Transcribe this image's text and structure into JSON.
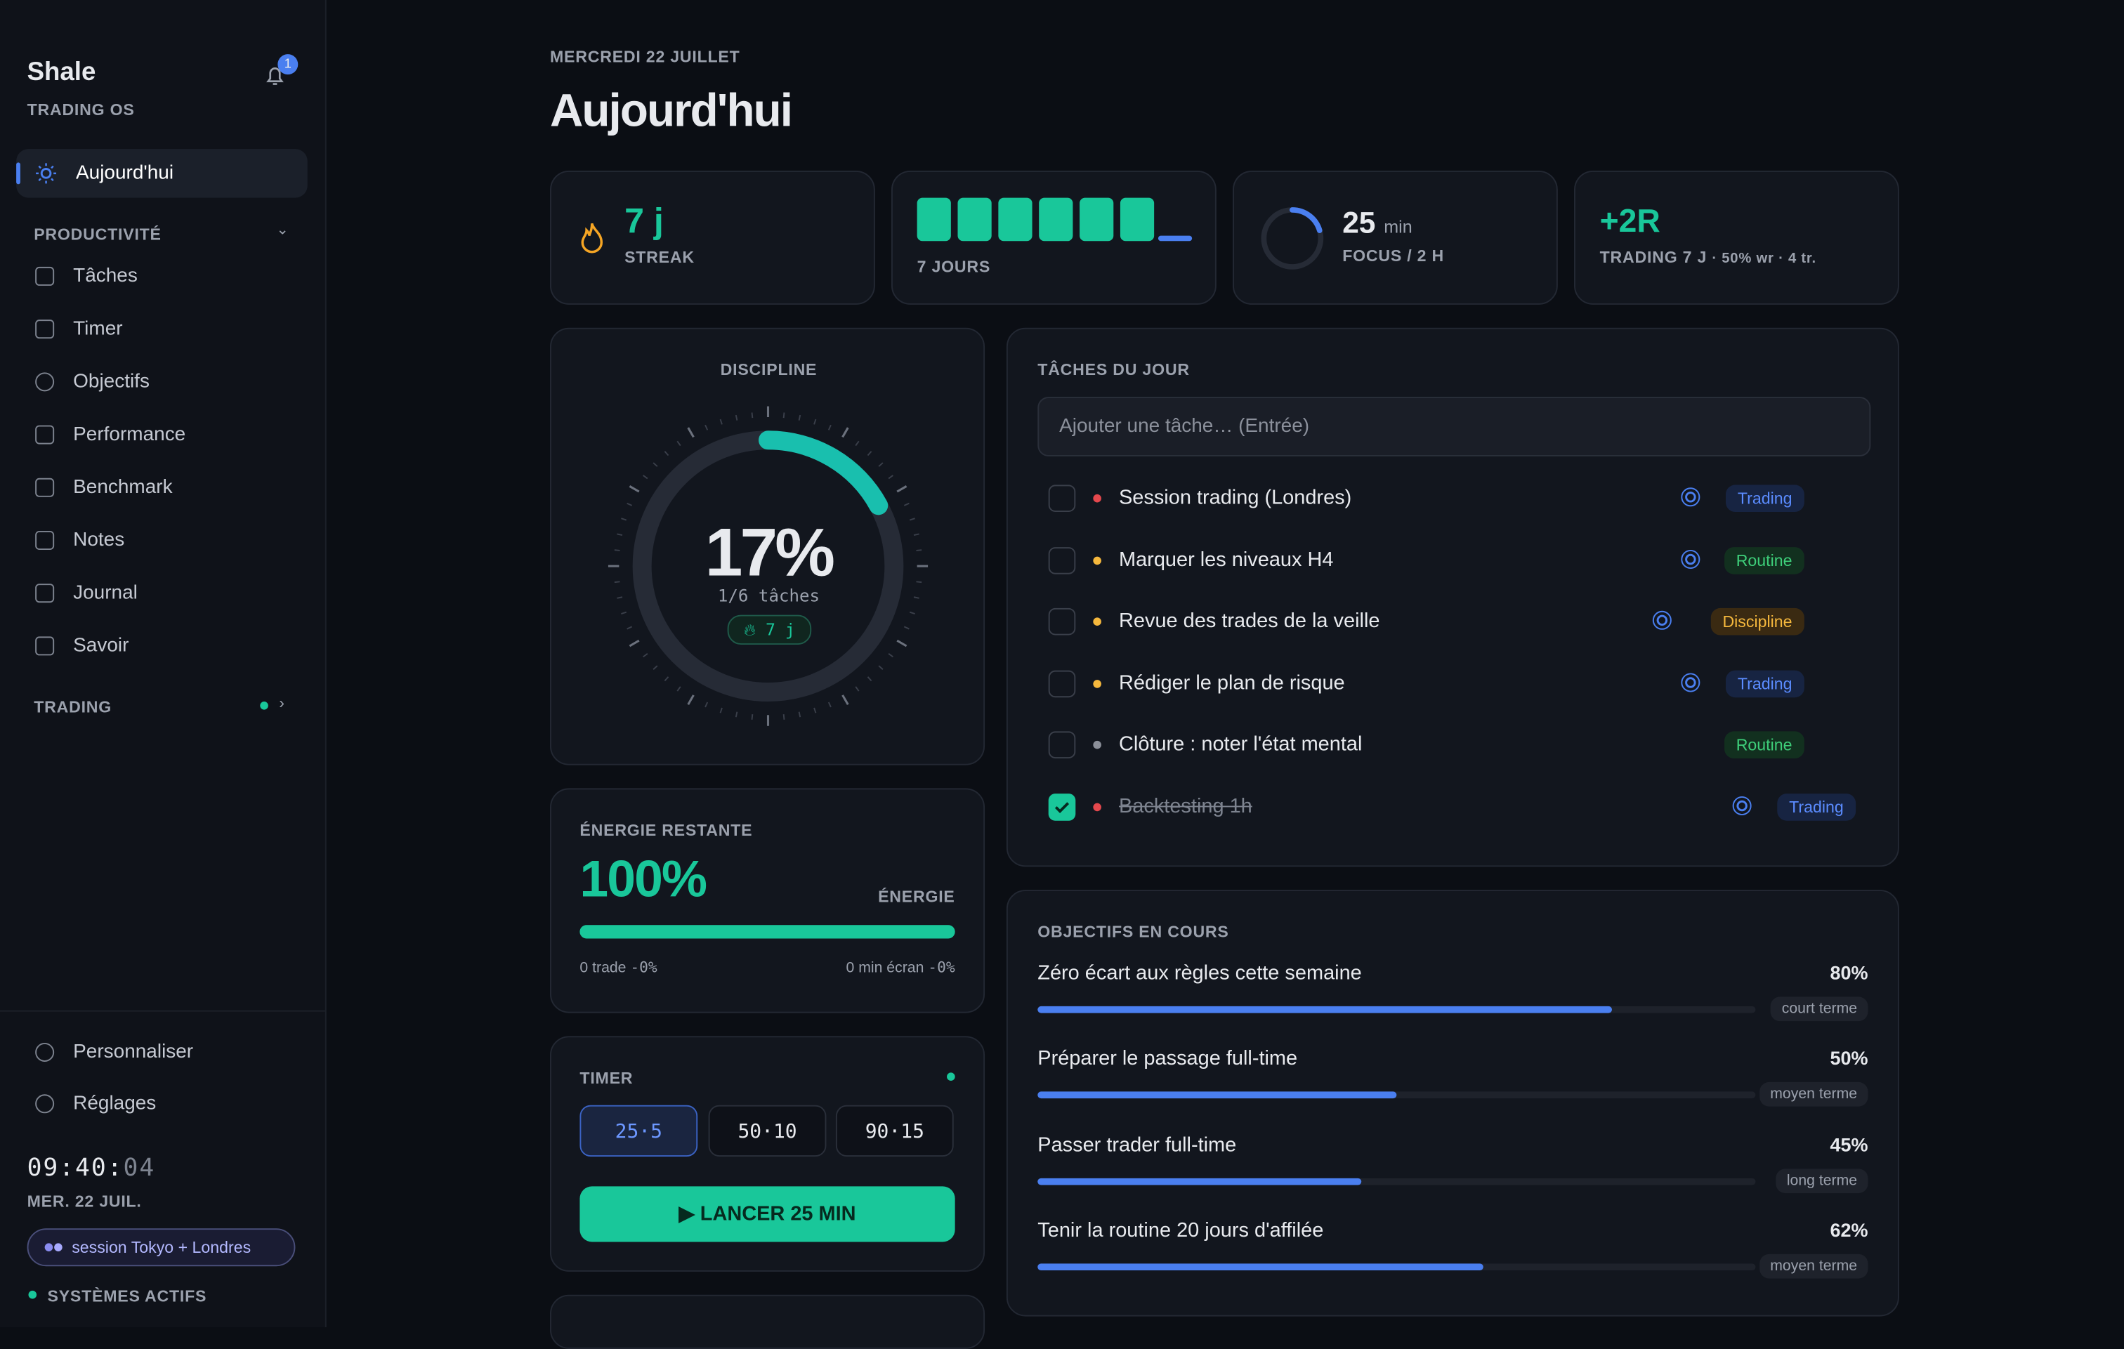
{
  "sidebar": {
    "brand": "Shale",
    "subtitle": "TRADING OS",
    "notifications": "1",
    "active": "Aujourd'hui",
    "section": "PRODUCTIVITÉ",
    "items": [
      "Tâches",
      "Timer",
      "Objectifs",
      "Performance",
      "Benchmark",
      "Notes",
      "Journal",
      "Savoir"
    ],
    "section2": "TRADING",
    "footer_items": [
      "Personnaliser",
      "Réglages"
    ],
    "clock": "09:40:",
    "clock_seconds": "04",
    "date": "MER. 22 JUIL.",
    "session": "session Tokyo + Londres",
    "status": "SYSTÈMES ACTIFS"
  },
  "header": {
    "date": "MERCREDI 22 JUILLET",
    "title": "Aujourd'hui"
  },
  "stats": {
    "streak": {
      "value": "7 j",
      "label": "STREAK"
    },
    "week": {
      "label": "7 JOURS"
    },
    "focus": {
      "value": "25",
      "unit": "min",
      "label": "FOCUS / 2 H"
    },
    "trading": {
      "value": "+2R",
      "label": "TRADING 7 J",
      "detail": "· 50% wr · 4 tr."
    }
  },
  "discipline": {
    "title": "DISCIPLINE",
    "percent": {
      "value": 17,
      "label": "17%"
    },
    "sub": "1/6 tâches",
    "streak": "7 j"
  },
  "energy": {
    "title": "ÉNERGIE RESTANTE",
    "percent": {
      "value": 100,
      "label": "100%"
    },
    "label": "ÉNERGIE",
    "left": "0 trade",
    "left_delta": "-0%",
    "right": "0 min écran",
    "right_delta": "-0%"
  },
  "timer": {
    "title": "TIMER",
    "presets": [
      "25·5",
      "50·10",
      "90·15"
    ],
    "button": "LANCER 25 MIN"
  },
  "tasks": {
    "title": "TÂCHES DU JOUR",
    "placeholder": "Ajouter une tâche… (Entrée)",
    "items": [
      {
        "text": "Session trading (Londres)",
        "tag": "Trading",
        "done": false,
        "dot": "#e5484d",
        "target": true
      },
      {
        "text": "Marquer les niveaux H4",
        "tag": "Routine",
        "done": false,
        "dot": "#f5b83d",
        "target": true
      },
      {
        "text": "Revue des trades de la veille",
        "tag": "Discipline",
        "done": false,
        "dot": "#f5b83d",
        "target": true
      },
      {
        "text": "Rédiger le plan de risque",
        "tag": "Trading",
        "done": false,
        "dot": "#f5b83d",
        "target": true
      },
      {
        "text": "Clôture : noter l'état mental",
        "tag": "Routine",
        "done": false,
        "dot": "#8b8f99",
        "target": false
      },
      {
        "text": "Backtesting 1h",
        "tag": "Trading",
        "done": true,
        "dot": "#e5484d",
        "target": true
      }
    ]
  },
  "goals": {
    "title": "OBJECTIFS EN COURS",
    "items": [
      {
        "name": "Zéro écart aux règles cette semaine",
        "progress": {
          "value": 80,
          "label": "80%"
        },
        "term": "court terme"
      },
      {
        "name": "Préparer le passage full-time",
        "progress": {
          "value": 50,
          "label": "50%"
        },
        "term": "moyen terme"
      },
      {
        "name": "Passer trader full-time",
        "progress": {
          "value": 45,
          "label": "45%"
        },
        "term": "long terme"
      },
      {
        "name": "Tenir la routine 20 jours d'affilée",
        "progress": {
          "value": 62,
          "label": "62%"
        },
        "term": "moyen terme"
      }
    ]
  }
}
